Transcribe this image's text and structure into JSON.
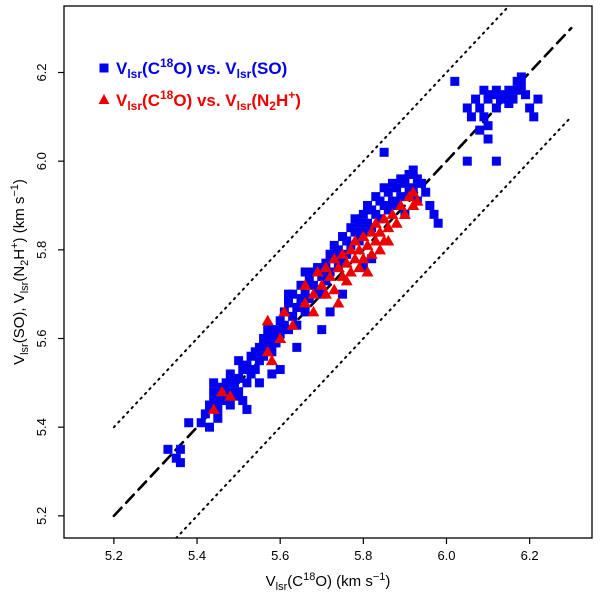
{
  "chart_data": {
    "type": "scatter",
    "title": "",
    "xlabel": {
      "main": "V",
      "sub": "lsr",
      "mid": "(C",
      "sup": "18",
      "end": "O) (km s",
      "unitsup": "−1",
      "close": ")"
    },
    "ylabel": {
      "p1": "V",
      "s1": "lsr",
      "p2": "(SO), V",
      "s2": "lsr",
      "p3": "(N",
      "s3": "2",
      "p4": "H",
      "s4": "+",
      "p5": ")   (km s",
      "s5": "−1",
      "p6": ")"
    },
    "xlim": [
      5.08,
      6.35
    ],
    "ylim": [
      5.15,
      6.35
    ],
    "xticks": [
      5.2,
      5.4,
      5.6,
      5.8,
      6.0,
      6.2
    ],
    "yticks": [
      5.2,
      5.4,
      5.6,
      5.8,
      6.0,
      6.2
    ],
    "xtick_labels": [
      "5.2",
      "5.4",
      "5.6",
      "5.8",
      "6.0",
      "6.2"
    ],
    "ytick_labels": [
      "5.2",
      "5.4",
      "5.6",
      "5.8",
      "6.0",
      "6.2"
    ],
    "reference_lines": [
      {
        "name": "one-to-one",
        "style": "dashed",
        "offset": 0.0
      },
      {
        "name": "upper-bound",
        "style": "dotted",
        "offset": 0.2
      },
      {
        "name": "lower-bound",
        "style": "dotted",
        "offset": -0.2
      }
    ],
    "legend_position": "top-left",
    "series": [
      {
        "name": "Vlsr(C18O) vs. Vlsr(SO)",
        "label": {
          "v1": "V",
          "s1": "lsr",
          "p1": "(C",
          "u1": "18",
          "p2": "O) vs. V",
          "s2": "lsr",
          "p3": "(SO)"
        },
        "color": "#0000ee",
        "marker": "square",
        "points": [
          [
            5.33,
            5.35
          ],
          [
            5.35,
            5.33
          ],
          [
            5.36,
            5.32
          ],
          [
            5.36,
            5.35
          ],
          [
            5.38,
            5.41
          ],
          [
            5.41,
            5.41
          ],
          [
            5.42,
            5.43
          ],
          [
            5.43,
            5.45
          ],
          [
            5.44,
            5.46
          ],
          [
            5.44,
            5.48
          ],
          [
            5.44,
            5.5
          ],
          [
            5.45,
            5.47
          ],
          [
            5.45,
            5.44
          ],
          [
            5.46,
            5.49
          ],
          [
            5.46,
            5.46
          ],
          [
            5.47,
            5.5
          ],
          [
            5.47,
            5.47
          ],
          [
            5.48,
            5.48
          ],
          [
            5.48,
            5.45
          ],
          [
            5.49,
            5.5
          ],
          [
            5.49,
            5.47
          ],
          [
            5.5,
            5.51
          ],
          [
            5.5,
            5.48
          ],
          [
            5.51,
            5.46
          ],
          [
            5.51,
            5.53
          ],
          [
            5.52,
            5.5
          ],
          [
            5.52,
            5.54
          ],
          [
            5.53,
            5.52
          ],
          [
            5.53,
            5.56
          ],
          [
            5.54,
            5.53
          ],
          [
            5.54,
            5.57
          ],
          [
            5.55,
            5.55
          ],
          [
            5.55,
            5.58
          ],
          [
            5.56,
            5.56
          ],
          [
            5.56,
            5.6
          ],
          [
            5.57,
            5.58
          ],
          [
            5.57,
            5.62
          ],
          [
            5.58,
            5.6
          ],
          [
            5.58,
            5.57
          ],
          [
            5.59,
            5.62
          ],
          [
            5.59,
            5.59
          ],
          [
            5.6,
            5.61
          ],
          [
            5.6,
            5.64
          ],
          [
            5.61,
            5.63
          ],
          [
            5.61,
            5.66
          ],
          [
            5.62,
            5.62
          ],
          [
            5.62,
            5.68
          ],
          [
            5.63,
            5.65
          ],
          [
            5.63,
            5.7
          ],
          [
            5.64,
            5.67
          ],
          [
            5.64,
            5.63
          ],
          [
            5.65,
            5.69
          ],
          [
            5.65,
            5.72
          ],
          [
            5.66,
            5.7
          ],
          [
            5.66,
            5.66
          ],
          [
            5.67,
            5.73
          ],
          [
            5.67,
            5.69
          ],
          [
            5.68,
            5.72
          ],
          [
            5.68,
            5.75
          ],
          [
            5.69,
            5.71
          ],
          [
            5.69,
            5.76
          ],
          [
            5.7,
            5.74
          ],
          [
            5.7,
            5.7
          ],
          [
            5.71,
            5.77
          ],
          [
            5.71,
            5.73
          ],
          [
            5.72,
            5.79
          ],
          [
            5.72,
            5.75
          ],
          [
            5.73,
            5.78
          ],
          [
            5.73,
            5.81
          ],
          [
            5.74,
            5.76
          ],
          [
            5.74,
            5.8
          ],
          [
            5.75,
            5.83
          ],
          [
            5.75,
            5.78
          ],
          [
            5.76,
            5.82
          ],
          [
            5.76,
            5.79
          ],
          [
            5.77,
            5.85
          ],
          [
            5.77,
            5.81
          ],
          [
            5.78,
            5.84
          ],
          [
            5.78,
            5.87
          ],
          [
            5.79,
            5.82
          ],
          [
            5.79,
            5.86
          ],
          [
            5.8,
            5.88
          ],
          [
            5.8,
            5.84
          ],
          [
            5.81,
            5.9
          ],
          [
            5.81,
            5.86
          ],
          [
            5.82,
            5.89
          ],
          [
            5.82,
            5.85
          ],
          [
            5.83,
            5.92
          ],
          [
            5.83,
            5.88
          ],
          [
            5.84,
            5.91
          ],
          [
            5.84,
            5.87
          ],
          [
            5.85,
            5.94
          ],
          [
            5.85,
            5.9
          ],
          [
            5.86,
            5.93
          ],
          [
            5.86,
            5.89
          ],
          [
            5.87,
            5.95
          ],
          [
            5.87,
            5.91
          ],
          [
            5.88,
            5.94
          ],
          [
            5.88,
            5.9
          ],
          [
            5.89,
            5.96
          ],
          [
            5.89,
            5.92
          ],
          [
            5.9,
            5.95
          ],
          [
            5.9,
            5.88
          ],
          [
            5.91,
            5.97
          ],
          [
            5.91,
            5.93
          ],
          [
            5.92,
            5.98
          ],
          [
            5.92,
            5.94
          ],
          [
            5.93,
            5.96
          ],
          [
            5.93,
            5.91
          ],
          [
            5.94,
            5.95
          ],
          [
            5.95,
            5.93
          ],
          [
            5.96,
            5.9
          ],
          [
            5.97,
            5.88
          ],
          [
            5.98,
            5.86
          ],
          [
            5.85,
            6.02
          ],
          [
            5.7,
            5.62
          ],
          [
            5.72,
            5.66
          ],
          [
            5.75,
            5.7
          ],
          [
            5.58,
            5.52
          ],
          [
            5.55,
            5.5
          ],
          [
            5.5,
            5.55
          ],
          [
            5.48,
            5.52
          ],
          [
            5.62,
            5.7
          ],
          [
            5.66,
            5.75
          ],
          [
            5.8,
            5.76
          ],
          [
            5.82,
            5.78
          ],
          [
            6.02,
            6.18
          ],
          [
            6.05,
            6.12
          ],
          [
            6.06,
            6.1
          ],
          [
            6.07,
            6.14
          ],
          [
            6.08,
            6.12
          ],
          [
            6.09,
            6.16
          ],
          [
            6.09,
            6.1
          ],
          [
            6.1,
            6.14
          ],
          [
            6.1,
            6.08
          ],
          [
            6.11,
            6.15
          ],
          [
            6.12,
            6.12
          ],
          [
            6.12,
            6.16
          ],
          [
            6.13,
            6.14
          ],
          [
            6.14,
            6.15
          ],
          [
            6.15,
            6.13
          ],
          [
            6.15,
            6.16
          ],
          [
            6.16,
            6.14
          ],
          [
            6.17,
            6.16
          ],
          [
            6.17,
            6.18
          ],
          [
            6.18,
            6.17
          ],
          [
            6.18,
            6.19
          ],
          [
            6.19,
            6.15
          ],
          [
            6.2,
            6.12
          ],
          [
            6.22,
            6.14
          ],
          [
            6.21,
            6.1
          ],
          [
            6.1,
            6.05
          ],
          [
            6.12,
            6.0
          ],
          [
            6.08,
            6.07
          ],
          [
            6.05,
            6.0
          ],
          [
            5.45,
            5.42
          ],
          [
            5.43,
            5.4
          ],
          [
            5.52,
            5.44
          ],
          [
            5.6,
            5.53
          ],
          [
            5.64,
            5.58
          ]
        ]
      },
      {
        "name": "Vlsr(C18O) vs. Vlsr(N2H+)",
        "label": {
          "v1": "V",
          "s1": "lsr",
          "p1": "(C",
          "u1": "18",
          "p2": "O) vs. V",
          "s2": "lsr",
          "p3": "(N",
          "s3": "2",
          "p4": "H",
          "u2": "+",
          "p5": ")"
        },
        "color": "#ee0000",
        "marker": "triangle",
        "points": [
          [
            5.44,
            5.44
          ],
          [
            5.46,
            5.48
          ],
          [
            5.48,
            5.47
          ],
          [
            5.57,
            5.57
          ],
          [
            5.57,
            5.64
          ],
          [
            5.58,
            5.55
          ],
          [
            5.6,
            5.6
          ],
          [
            5.61,
            5.66
          ],
          [
            5.63,
            5.63
          ],
          [
            5.66,
            5.68
          ],
          [
            5.66,
            5.72
          ],
          [
            5.68,
            5.7
          ],
          [
            5.69,
            5.75
          ],
          [
            5.7,
            5.72
          ],
          [
            5.71,
            5.76
          ],
          [
            5.72,
            5.74
          ],
          [
            5.73,
            5.78
          ],
          [
            5.73,
            5.71
          ],
          [
            5.74,
            5.76
          ],
          [
            5.75,
            5.79
          ],
          [
            5.75,
            5.74
          ],
          [
            5.76,
            5.77
          ],
          [
            5.77,
            5.8
          ],
          [
            5.77,
            5.75
          ],
          [
            5.78,
            5.78
          ],
          [
            5.78,
            5.82
          ],
          [
            5.79,
            5.76
          ],
          [
            5.79,
            5.8
          ],
          [
            5.8,
            5.83
          ],
          [
            5.8,
            5.78
          ],
          [
            5.81,
            5.81
          ],
          [
            5.81,
            5.75
          ],
          [
            5.82,
            5.84
          ],
          [
            5.82,
            5.79
          ],
          [
            5.83,
            5.82
          ],
          [
            5.83,
            5.86
          ],
          [
            5.84,
            5.8
          ],
          [
            5.84,
            5.84
          ],
          [
            5.85,
            5.87
          ],
          [
            5.85,
            5.82
          ],
          [
            5.86,
            5.85
          ],
          [
            5.87,
            5.88
          ],
          [
            5.88,
            5.86
          ],
          [
            5.89,
            5.9
          ],
          [
            5.9,
            5.88
          ],
          [
            5.91,
            5.92
          ],
          [
            5.92,
            5.9
          ],
          [
            5.92,
            5.93
          ],
          [
            5.93,
            5.91
          ],
          [
            5.74,
            5.68
          ],
          [
            5.68,
            5.66
          ],
          [
            5.71,
            5.7
          ],
          [
            5.76,
            5.73
          ],
          [
            5.86,
            5.82
          ]
        ]
      }
    ]
  }
}
